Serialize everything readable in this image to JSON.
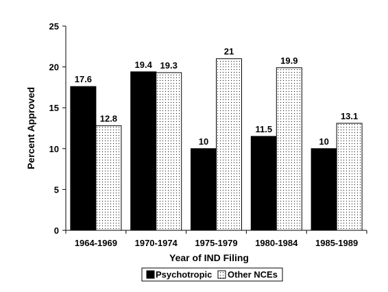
{
  "chart_data": {
    "type": "bar",
    "title": "",
    "xlabel": "Year of IND Filing",
    "ylabel": "Percent Approved",
    "ylim": [
      0,
      25
    ],
    "yticks": [
      0,
      5,
      10,
      15,
      20,
      25
    ],
    "grid": false,
    "legend_position": "bottom-center",
    "categories": [
      "1964-1969",
      "1970-1974",
      "1975-1979",
      "1980-1984",
      "1985-1989"
    ],
    "series": [
      {
        "name": "Psychotropic",
        "values": [
          17.6,
          19.4,
          10,
          11.5,
          10
        ],
        "labels": [
          "17.6",
          "19.4",
          "10",
          "11.5",
          "10"
        ],
        "fill": "solid-black"
      },
      {
        "name": "Other NCEs",
        "values": [
          12.8,
          19.3,
          21,
          19.9,
          13.1
        ],
        "labels": [
          "12.8",
          "19.3",
          "21",
          "19.9",
          "13.1"
        ],
        "fill": "dotted-white"
      }
    ],
    "colors": {
      "psychotropic": "#000000",
      "other_nces": "#ffffff",
      "dots": "#000000"
    }
  }
}
